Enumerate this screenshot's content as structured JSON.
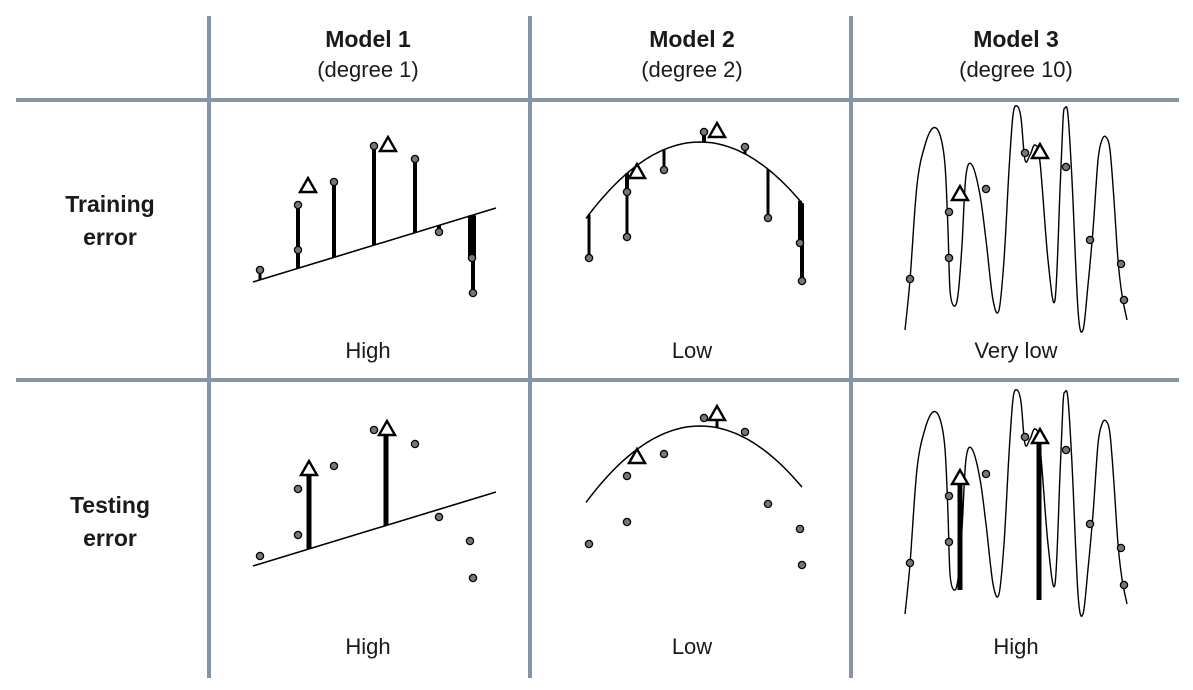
{
  "columns": [
    {
      "title": "Model 1",
      "subtitle": "(degree 1)"
    },
    {
      "title": "Model 2",
      "subtitle": "(degree 2)"
    },
    {
      "title": "Model 3",
      "subtitle": "(degree 10)"
    }
  ],
  "rows": [
    {
      "label_line1": "Training",
      "label_line2": "error"
    },
    {
      "label_line1": "Testing",
      "label_line2": "error"
    }
  ],
  "cells": {
    "train_1": "High",
    "train_2": "Low",
    "train_3": "Very low",
    "test_1": "High",
    "test_2": "Low",
    "test_3": "High"
  },
  "colors": {
    "grid": "#8595a8",
    "point_fill": "#777777",
    "ink": "#000000"
  }
}
